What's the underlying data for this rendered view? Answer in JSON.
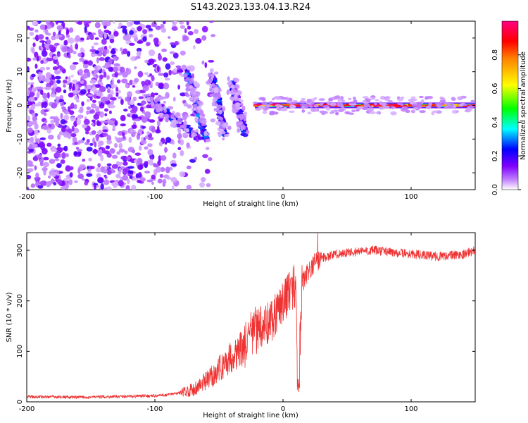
{
  "title": "S143.2023.133.04.13.R24",
  "chart_data": [
    {
      "type": "heatmap",
      "xlabel": "Height of straight line (km)",
      "ylabel": "Frequency (Hz)",
      "xlim": [
        -200,
        150
      ],
      "ylim": [
        -25,
        25
      ],
      "xticks": [
        "-200",
        "-100",
        "0",
        "100"
      ],
      "yticks": [
        "-20",
        "-10",
        "0",
        "10",
        "20"
      ],
      "colorbar": {
        "label": "Normalized spectral amplitude",
        "range": [
          0,
          1
        ],
        "ticks": [
          "0.0",
          "0.2",
          "0.4",
          "0.6",
          "0.8"
        ],
        "colors": [
          "#ffffff",
          "#8000ff",
          "#0000ff",
          "#00ffff",
          "#00ff00",
          "#ffff00",
          "#ff0000",
          "#ff0080"
        ]
      },
      "features": [
        {
          "x0": -200,
          "x1": -70,
          "f0": -25,
          "f1": 25,
          "amplitude": 0.15
        },
        {
          "x0": -105,
          "x1": -65,
          "f0": 2,
          "f1": -10,
          "amplitude": 0.25
        },
        {
          "x0": -75,
          "x1": -60,
          "f0": 10,
          "f1": -10,
          "amplitude": 0.3
        },
        {
          "x0": -55,
          "x1": -45,
          "f0": 9,
          "f1": -9,
          "amplitude": 0.3
        },
        {
          "x0": -40,
          "x1": -30,
          "f0": 7,
          "f1": -8,
          "amplitude": 0.25
        },
        {
          "x0": -22,
          "x1": 150,
          "f0": 0,
          "f1": 0,
          "amplitude": 0.85
        }
      ]
    },
    {
      "type": "line",
      "xlabel": "Height of straight line (km)",
      "ylabel": "SNR (10 * v/v)",
      "xlim": [
        -200,
        150
      ],
      "ylim": [
        0,
        335
      ],
      "xticks": [
        "-200",
        "-100",
        "0",
        "100"
      ],
      "yticks": [
        "0",
        "100",
        "200",
        "300"
      ],
      "color": "#ee3333",
      "series": [
        {
          "x": [
            -200,
            -180,
            -160,
            -140,
            -120,
            -100,
            -90,
            -80,
            -70,
            -60,
            -50,
            -40,
            -30,
            -20,
            -10,
            0,
            5,
            10,
            12,
            15,
            20,
            25,
            30,
            40,
            50,
            60,
            70,
            80,
            90,
            100,
            110,
            120,
            130,
            140,
            150
          ],
          "values": [
            10,
            10,
            9,
            10,
            11,
            12,
            14,
            18,
            25,
            40,
            65,
            90,
            110,
            140,
            160,
            200,
            220,
            230,
            30,
            235,
            260,
            275,
            285,
            292,
            295,
            298,
            300,
            298,
            295,
            293,
            290,
            288,
            290,
            292,
            300
          ]
        }
      ]
    }
  ]
}
